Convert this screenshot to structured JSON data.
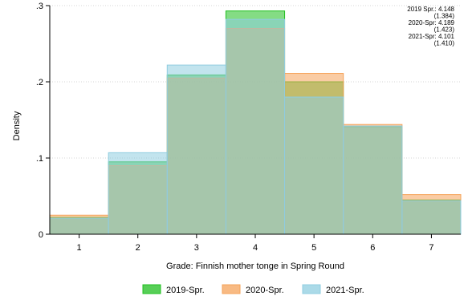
{
  "chart_data": {
    "type": "bar",
    "xlabel": "Grade: Finnish mother tonge in Spring Round",
    "ylabel": "Density",
    "categories": [
      "1",
      "2",
      "3",
      "4",
      "5",
      "6",
      "7"
    ],
    "x": [
      1,
      2,
      3,
      4,
      5,
      6,
      7
    ],
    "xlim": [
      0.5,
      7.5
    ],
    "ylim": [
      0,
      0.3
    ],
    "yticks": [
      0,
      0.1,
      0.2,
      0.3
    ],
    "ytick_labels": [
      "0",
      ".1",
      ".2",
      ".3"
    ],
    "grid": "horizontal dotted",
    "legend_position": "bottom",
    "series": [
      {
        "name": "2019-Spr.",
        "color": "#1fbf1f",
        "values": [
          0.022,
          0.095,
          0.209,
          0.293,
          0.2,
          0.141,
          0.045
        ]
      },
      {
        "name": "2020-Spr.",
        "color": "#f5a35a",
        "values": [
          0.025,
          0.09,
          0.205,
          0.27,
          0.211,
          0.144,
          0.052
        ]
      },
      {
        "name": "2021-Spr.",
        "color": "#8fcde0",
        "values": [
          0.021,
          0.107,
          0.222,
          0.282,
          0.18,
          0.142,
          0.044
        ]
      }
    ],
    "annotations": [
      "2019 Spr.: 4.148",
      "(1.384)",
      "2020-Spr: 4.189",
      "(1.423)",
      "2021-Spr: 4.101",
      "(1.410)"
    ]
  }
}
